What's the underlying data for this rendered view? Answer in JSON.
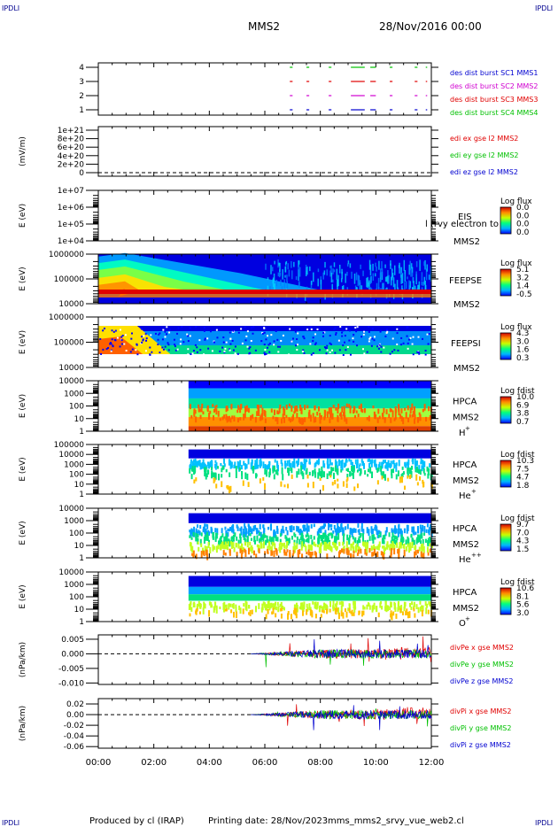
{
  "header": {
    "corner_label": "IPDLI",
    "mission": "MMS2",
    "date": "28/Nov/2016 00:00"
  },
  "footer": {
    "produced_by": "Produced by cl (IRAP)",
    "printing_date": "Printing date: 28/Nov/2023",
    "filename": "mms_mms2_srvy_vue_web2.cl"
  },
  "colors": {
    "red": "#e00000",
    "green": "#00c000",
    "blue": "#0000d0",
    "magenta": "#d000d0",
    "legend_blue": "#000090"
  },
  "chart_data": [
    {
      "type": "line",
      "panel": "burst",
      "yticks": [
        "4",
        "3",
        "2",
        "1"
      ],
      "labels": [
        {
          "text": "des dist burst SC1 MMS1",
          "color": "#0000d0"
        },
        {
          "text": "des dist burst SC2 MMS2",
          "color": "#d000d0"
        },
        {
          "text": "des dist burst SC3 MMS3",
          "color": "#e00000"
        },
        {
          "text": "des dist burst SC4 MMS4",
          "color": "#00c000"
        }
      ]
    },
    {
      "type": "line",
      "panel": "edi",
      "ylabel": "(mV/m)",
      "yticks": [
        "1e+21",
        "8e+20",
        "6e+20",
        "4e+20",
        "2e+20",
        "0"
      ],
      "labels": [
        {
          "text": "edi ex gse l2 MMS2",
          "color": "#e00000"
        },
        {
          "text": "edi ey gse l2 MMS2",
          "color": "#00c000"
        },
        {
          "text": "edi ez gse l2 MMS2",
          "color": "#0000d0"
        }
      ]
    },
    {
      "type": "heatmap",
      "panel": "eis",
      "ylabel": "E (eV)",
      "yticks": [
        "1e+07",
        "1e+06",
        "1e+05",
        "1e+04"
      ],
      "instrument": "EIS",
      "overlay": "l (rvy electron to",
      "spacecraft": "MMS2",
      "colorbar_title": "Log flux",
      "colorbar_ticks": [
        "0.0",
        "0.0",
        "0.0",
        "0.0"
      ]
    },
    {
      "type": "heatmap",
      "panel": "feeps_e",
      "ylabel": "E (eV)",
      "yticks": [
        "1000000",
        "100000",
        "10000"
      ],
      "instrument": "FEEPSE",
      "spacecraft": "MMS2",
      "colorbar_title": "Log flux",
      "colorbar_ticks": [
        "5.1",
        "3.2",
        "1.4",
        "-0.5"
      ]
    },
    {
      "type": "heatmap",
      "panel": "feeps_i",
      "ylabel": "E (eV)",
      "yticks": [
        "1000000",
        "100000",
        "10000"
      ],
      "instrument": "FEEPSI",
      "spacecraft": "MMS2",
      "colorbar_title": "Log flux",
      "colorbar_ticks": [
        "4.3",
        "3.0",
        "1.6",
        "0.3"
      ]
    },
    {
      "type": "heatmap",
      "panel": "hpca_h",
      "ylabel": "E (eV)",
      "yticks": [
        "10000",
        "1000",
        "100",
        "10",
        "1"
      ],
      "instrument": "HPCA",
      "spacecraft": "MMS2",
      "species": "H",
      "species_sup": "+",
      "colorbar_title": "Log fdist",
      "colorbar_ticks": [
        "10.0",
        "6.9",
        "3.8",
        "0.7"
      ]
    },
    {
      "type": "heatmap",
      "panel": "hpca_he",
      "ylabel": "E (eV)",
      "yticks": [
        "100000",
        "10000",
        "1000",
        "100",
        "10",
        "1"
      ],
      "instrument": "HPCA",
      "spacecraft": "MMS2",
      "species": "He",
      "species_sup": "+",
      "colorbar_title": "Log fdist",
      "colorbar_ticks": [
        "10.3",
        "7.5",
        "4.7",
        "1.8"
      ]
    },
    {
      "type": "heatmap",
      "panel": "hpca_hepp",
      "ylabel": "E (eV)",
      "yticks": [
        "10000",
        "1000",
        "100",
        "10",
        "1"
      ],
      "instrument": "HPCA",
      "spacecraft": "MMS2",
      "species": "He",
      "species_sup": "++",
      "colorbar_title": "Log fdist",
      "colorbar_ticks": [
        "9.7",
        "7.0",
        "4.3",
        "1.5"
      ]
    },
    {
      "type": "heatmap",
      "panel": "hpca_o",
      "ylabel": "E (eV)",
      "yticks": [
        "10000",
        "1000",
        "100",
        "10",
        "1"
      ],
      "instrument": "HPCA",
      "spacecraft": "MMS2",
      "species": "O",
      "species_sup": "+",
      "colorbar_title": "Log fdist",
      "colorbar_ticks": [
        "10.6",
        "8.1",
        "5.6",
        "3.0"
      ]
    },
    {
      "type": "line",
      "panel": "divpe",
      "ylabel": "(nPa/km)",
      "yticks": [
        "0.005",
        "0.000",
        "-0.005",
        "-0.010"
      ],
      "ylim": [
        -0.0105,
        0.0065
      ],
      "labels": [
        {
          "text": "divPe x gse MMS2",
          "color": "#e00000"
        },
        {
          "text": "divPe y gse MMS2",
          "color": "#00c000"
        },
        {
          "text": "divPe z gse MMS2",
          "color": "#0000d0"
        }
      ]
    },
    {
      "type": "line",
      "panel": "divpi",
      "ylabel": "(nPa/km)",
      "yticks": [
        "0.02",
        "0.00",
        "-0.02",
        "-0.04",
        "-0.06"
      ],
      "ylim": [
        -0.063,
        0.03
      ],
      "labels": [
        {
          "text": "divPi x gse MMS2",
          "color": "#e00000"
        },
        {
          "text": "divPi y gse MMS2",
          "color": "#00c000"
        },
        {
          "text": "divPi z gse MMS2",
          "color": "#0000d0"
        }
      ]
    }
  ],
  "xaxis": {
    "ticks": [
      "00:00",
      "02:00",
      "04:00",
      "06:00",
      "08:00",
      "10:00",
      "12:00"
    ]
  }
}
